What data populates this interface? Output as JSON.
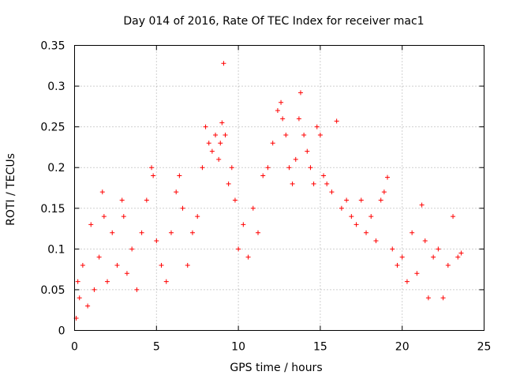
{
  "chart_data": {
    "type": "scatter",
    "title": "Day 014 of 2016, Rate Of TEC Index for receiver mac1",
    "xlabel": "GPS time / hours",
    "ylabel": "ROTI / TECUs",
    "xlim": [
      0,
      25
    ],
    "ylim": [
      0,
      0.35
    ],
    "x_ticks": [
      "0",
      "5",
      "10",
      "15",
      "20",
      "25"
    ],
    "y_ticks": [
      "0",
      "0.05",
      "0.1",
      "0.15",
      "0.2",
      "0.25",
      "0.3",
      "0.35"
    ],
    "grid": true,
    "legend": "none",
    "marker": "+",
    "color": "#ff0000",
    "series": [
      {
        "x": [
          0.1,
          0.2,
          0.3,
          0.5,
          0.8,
          1.0,
          1.2,
          1.5,
          1.7,
          1.8,
          2.0,
          2.3,
          2.6,
          2.9,
          3.0,
          3.2,
          3.5,
          3.8,
          4.1,
          4.4,
          4.7,
          4.8,
          5.0,
          5.3,
          5.6,
          5.9,
          6.2,
          6.4,
          6.6,
          6.9,
          7.2,
          7.5,
          7.8,
          8.0,
          8.2,
          8.4,
          8.6,
          8.8,
          8.9,
          9.0,
          9.1,
          9.2,
          9.4,
          9.6,
          9.8,
          10.0,
          10.3,
          10.6,
          10.9,
          11.2,
          11.5,
          11.8,
          12.1,
          12.4,
          12.6,
          12.7,
          12.9,
          13.1,
          13.3,
          13.5,
          13.7,
          13.8,
          14.0,
          14.2,
          14.4,
          14.6,
          14.8,
          15.0,
          15.2,
          15.4,
          15.7,
          16.0,
          16.3,
          16.6,
          16.9,
          17.2,
          17.5,
          17.8,
          18.1,
          18.4,
          18.7,
          18.9,
          19.1,
          19.4,
          19.7,
          20.0,
          20.3,
          20.6,
          20.9,
          21.2,
          21.4,
          21.6,
          21.9,
          22.2,
          22.5,
          22.8,
          23.1,
          23.4,
          23.6
        ],
        "y": [
          0.015,
          0.06,
          0.04,
          0.08,
          0.03,
          0.13,
          0.05,
          0.09,
          0.17,
          0.14,
          0.06,
          0.12,
          0.08,
          0.16,
          0.14,
          0.07,
          0.1,
          0.05,
          0.12,
          0.16,
          0.2,
          0.19,
          0.11,
          0.08,
          0.06,
          0.12,
          0.17,
          0.19,
          0.15,
          0.08,
          0.12,
          0.14,
          0.2,
          0.25,
          0.23,
          0.22,
          0.24,
          0.21,
          0.23,
          0.255,
          0.328,
          0.24,
          0.18,
          0.2,
          0.16,
          0.1,
          0.13,
          0.09,
          0.15,
          0.12,
          0.19,
          0.2,
          0.23,
          0.27,
          0.28,
          0.26,
          0.24,
          0.2,
          0.18,
          0.21,
          0.26,
          0.292,
          0.24,
          0.22,
          0.2,
          0.18,
          0.25,
          0.24,
          0.19,
          0.18,
          0.17,
          0.257,
          0.15,
          0.16,
          0.14,
          0.13,
          0.16,
          0.12,
          0.14,
          0.11,
          0.16,
          0.17,
          0.188,
          0.1,
          0.08,
          0.09,
          0.06,
          0.12,
          0.07,
          0.154,
          0.11,
          0.04,
          0.09,
          0.1,
          0.04,
          0.08,
          0.14,
          0.09,
          0.095
        ]
      }
    ]
  }
}
